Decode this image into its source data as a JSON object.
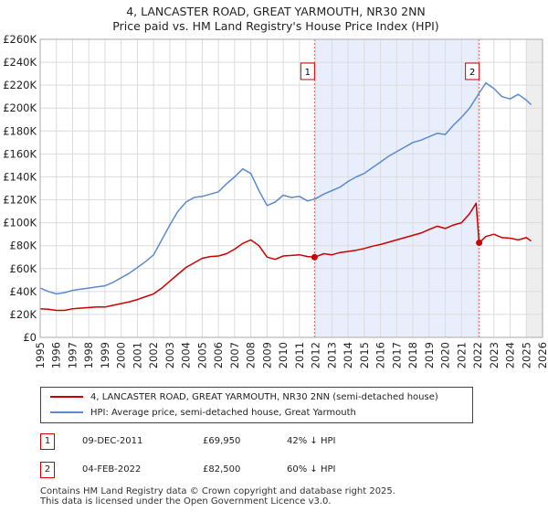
{
  "chart_data": {
    "type": "line",
    "title": "4, LANCASTER ROAD, GREAT YARMOUTH, NR30 2NN",
    "subtitle": "Price paid vs. HM Land Registry's House Price Index (HPI)",
    "xlim": [
      1995,
      2026
    ],
    "ylim": [
      0,
      260000
    ],
    "x_ticks": [
      "1995",
      "1996",
      "1997",
      "1998",
      "1999",
      "2000",
      "2001",
      "2002",
      "2003",
      "2004",
      "2005",
      "2006",
      "2007",
      "2008",
      "2009",
      "2010",
      "2011",
      "2012",
      "2013",
      "2014",
      "2015",
      "2016",
      "2017",
      "2018",
      "2019",
      "2020",
      "2021",
      "2022",
      "2023",
      "2024",
      "2025",
      "2026"
    ],
    "y_ticks": [
      {
        "value": 0,
        "label": "£0"
      },
      {
        "value": 20000,
        "label": "£20K"
      },
      {
        "value": 40000,
        "label": "£40K"
      },
      {
        "value": 60000,
        "label": "£60K"
      },
      {
        "value": 80000,
        "label": "£80K"
      },
      {
        "value": 100000,
        "label": "£100K"
      },
      {
        "value": 120000,
        "label": "£120K"
      },
      {
        "value": 140000,
        "label": "£140K"
      },
      {
        "value": 160000,
        "label": "£160K"
      },
      {
        "value": 180000,
        "label": "£180K"
      },
      {
        "value": 200000,
        "label": "£200K"
      },
      {
        "value": 220000,
        "label": "£220K"
      },
      {
        "value": 240000,
        "label": "£240K"
      },
      {
        "value": 260000,
        "label": "£260K"
      }
    ],
    "series": [
      {
        "name": "4, LANCASTER ROAD, GREAT YARMOUTH, NR30 2NN (semi-detached house)",
        "color": "#cc0000",
        "x": [
          1995.0,
          1995.5,
          1996.0,
          1996.5,
          1997.0,
          1997.5,
          1998.0,
          1998.5,
          1999.0,
          1999.5,
          2000.0,
          2000.5,
          2001.0,
          2001.5,
          2002.0,
          2002.5,
          2003.0,
          2003.5,
          2004.0,
          2004.5,
          2005.0,
          2005.5,
          2006.0,
          2006.5,
          2007.0,
          2007.5,
          2008.0,
          2008.5,
          2009.0,
          2009.5,
          2010.0,
          2010.5,
          2011.0,
          2011.5,
          2011.93,
          2012.5,
          2013.0,
          2013.5,
          2014.0,
          2014.5,
          2015.0,
          2015.5,
          2016.0,
          2016.5,
          2017.0,
          2017.5,
          2018.0,
          2018.5,
          2019.0,
          2019.5,
          2020.0,
          2020.5,
          2021.0,
          2021.5,
          2021.9,
          2022.09,
          2022.5,
          2023.0,
          2023.5,
          2024.0,
          2024.5,
          2025.0,
          2025.3
        ],
        "values": [
          25000,
          24500,
          23500,
          23500,
          25000,
          25500,
          26000,
          26500,
          26500,
          28000,
          29500,
          31000,
          33000,
          35500,
          38000,
          43000,
          49000,
          55000,
          61000,
          65000,
          69000,
          70500,
          71000,
          73000,
          77000,
          82000,
          85000,
          80000,
          70000,
          68000,
          71000,
          71500,
          72000,
          70500,
          69950,
          73000,
          72000,
          74000,
          75000,
          76000,
          77500,
          79500,
          81000,
          83000,
          85000,
          87000,
          89000,
          91000,
          94000,
          97000,
          95000,
          98000,
          100000,
          108000,
          117000,
          82500,
          88000,
          90000,
          87000,
          86500,
          85000,
          87000,
          84000
        ]
      },
      {
        "name": "HPI: Average price, semi-detached house, Great Yarmouth",
        "color": "#5b8ad0",
        "x": [
          1995.0,
          1995.5,
          1996.0,
          1996.5,
          1997.0,
          1997.5,
          1998.0,
          1998.5,
          1999.0,
          1999.5,
          2000.0,
          2000.5,
          2001.0,
          2001.5,
          2002.0,
          2002.5,
          2003.0,
          2003.5,
          2004.0,
          2004.5,
          2005.0,
          2005.5,
          2006.0,
          2006.5,
          2007.0,
          2007.5,
          2008.0,
          2008.5,
          2009.0,
          2009.5,
          2010.0,
          2010.5,
          2011.0,
          2011.5,
          2012.0,
          2012.5,
          2013.0,
          2013.5,
          2014.0,
          2014.5,
          2015.0,
          2015.5,
          2016.0,
          2016.5,
          2017.0,
          2017.5,
          2018.0,
          2018.5,
          2019.0,
          2019.5,
          2020.0,
          2020.5,
          2021.0,
          2021.5,
          2022.0,
          2022.5,
          2023.0,
          2023.5,
          2024.0,
          2024.5,
          2025.0,
          2025.3
        ],
        "values": [
          43000,
          40000,
          38000,
          39000,
          41000,
          42000,
          43000,
          44000,
          45000,
          48000,
          52000,
          56000,
          61000,
          66000,
          72000,
          85000,
          98000,
          110000,
          118000,
          122000,
          123000,
          125000,
          127000,
          134000,
          140000,
          147000,
          143000,
          128000,
          115000,
          118000,
          124000,
          122000,
          123000,
          119000,
          121000,
          125000,
          128000,
          131000,
          136000,
          140000,
          143000,
          148000,
          153000,
          158000,
          162000,
          166000,
          170000,
          172000,
          175000,
          178000,
          177000,
          185000,
          192000,
          200000,
          211000,
          222000,
          217000,
          210000,
          208000,
          212000,
          207000,
          203000
        ]
      }
    ],
    "vlines": [
      {
        "x": 2011.93,
        "label": "1"
      },
      {
        "x": 2022.09,
        "label": "2"
      }
    ],
    "points": [
      {
        "x": 2011.93,
        "y": 69950
      },
      {
        "x": 2022.09,
        "y": 82500
      }
    ],
    "shaded_regions": [
      [
        2011.93,
        2022.09
      ],
      [
        2025.0,
        2026.0
      ]
    ],
    "grid": true
  },
  "legend": {
    "items": [
      {
        "label": "4, LANCASTER ROAD, GREAT YARMOUTH, NR30 2NN (semi-detached house)",
        "color": "#cc0000"
      },
      {
        "label": "HPI: Average price, semi-detached house, Great Yarmouth",
        "color": "#5b8ad0"
      }
    ]
  },
  "transactions": [
    {
      "num": "1",
      "date": "09-DEC-2011",
      "price": "£69,950",
      "hpi": "42% ↓ HPI"
    },
    {
      "num": "2",
      "date": "04-FEB-2022",
      "price": "£82,500",
      "hpi": "60% ↓ HPI"
    }
  ],
  "footer": {
    "line1": "Contains HM Land Registry data © Crown copyright and database right 2025.",
    "line2": "This data is licensed under the Open Government Licence v3.0."
  }
}
